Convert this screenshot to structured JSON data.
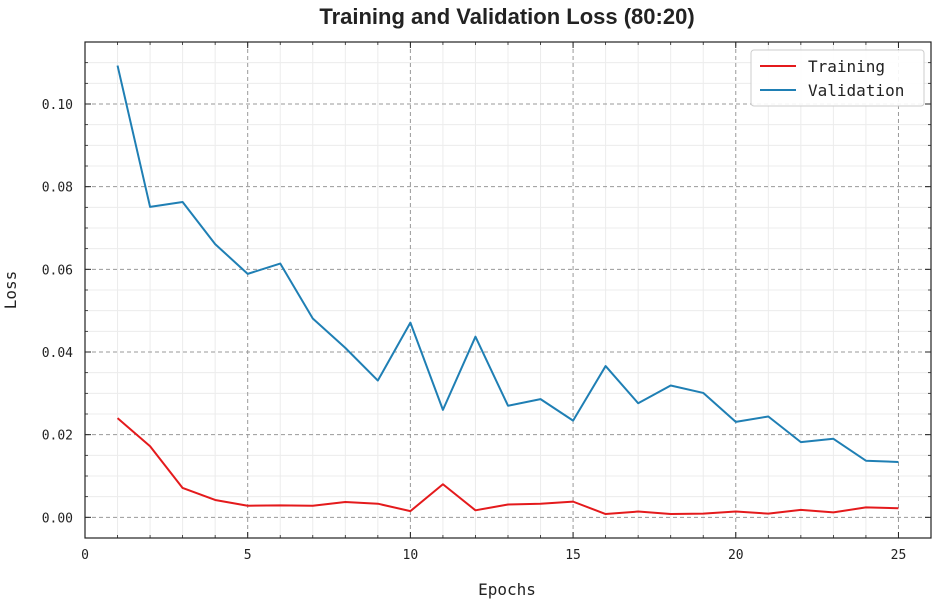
{
  "chart_data": {
    "type": "line",
    "title": "Training and Validation Loss (80:20)",
    "xlabel": "Epochs",
    "ylabel": "Loss",
    "xlim": [
      0,
      26
    ],
    "ylim": [
      -0.005,
      0.115
    ],
    "x_ticks": [
      0,
      5,
      10,
      15,
      20,
      25
    ],
    "y_ticks": [
      0.0,
      0.02,
      0.04,
      0.06,
      0.08,
      0.1
    ],
    "x_tick_labels": [
      "0",
      "5",
      "10",
      "15",
      "20",
      "25"
    ],
    "y_tick_labels": [
      "0.00",
      "0.02",
      "0.04",
      "0.06",
      "0.08",
      "0.10"
    ],
    "grid": true,
    "legend_position": "top-right",
    "x": [
      1,
      2,
      3,
      4,
      5,
      6,
      7,
      8,
      9,
      10,
      11,
      12,
      13,
      14,
      15,
      16,
      17,
      18,
      19,
      20,
      21,
      22,
      23,
      24,
      25
    ],
    "series": [
      {
        "name": "Training",
        "color": "#e41a1c",
        "values": [
          0.024,
          0.0172,
          0.0071,
          0.0042,
          0.0028,
          0.0029,
          0.0028,
          0.0037,
          0.0033,
          0.0015,
          0.008,
          0.0017,
          0.0031,
          0.0033,
          0.0038,
          0.0008,
          0.0014,
          0.0008,
          0.0009,
          0.0014,
          0.0009,
          0.0018,
          0.0012,
          0.0024,
          0.0022
        ]
      },
      {
        "name": "Validation",
        "color": "#1f7fb4",
        "values": [
          0.1093,
          0.0751,
          0.0763,
          0.0661,
          0.0589,
          0.0614,
          0.0481,
          0.041,
          0.0331,
          0.0471,
          0.026,
          0.0437,
          0.027,
          0.0286,
          0.0234,
          0.0366,
          0.0276,
          0.0319,
          0.0301,
          0.0231,
          0.0244,
          0.0182,
          0.019,
          0.0137,
          0.0134
        ]
      }
    ]
  }
}
